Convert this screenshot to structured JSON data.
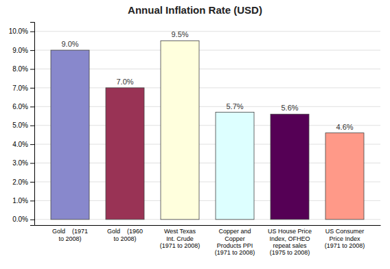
{
  "chart_data": {
    "type": "bar",
    "title": "Annual Inflation Rate (USD)",
    "categories": [
      "Gold    (1971\nto 2008)",
      "Gold    (1960\nto 2008)",
      "West Texas\nInt. Crude\n(1971 to 2008)",
      "Copper and\nCopper\nProducts PPI\n(1971 to 2008)",
      "US House Price\nIndex, OFHEO\nrepeat sales\n(1975 to 2008)",
      "US Consumer\nPrice Index\n(1971 to 2008)"
    ],
    "values": [
      9.0,
      7.0,
      9.5,
      5.7,
      5.6,
      4.6
    ],
    "value_labels": [
      "9.0%",
      "7.0%",
      "9.5%",
      "5.7%",
      "5.6%",
      "4.6%"
    ],
    "colors": [
      "#8888CC",
      "#993355",
      "#FFFFDD",
      "#DDFFFF",
      "#550055",
      "#FF9988"
    ],
    "ylim": [
      -0.3,
      10.5
    ],
    "yticks": [
      {
        "value": 0.0,
        "label": "0.0%"
      },
      {
        "value": 1.0,
        "label": "1.0%"
      },
      {
        "value": 2.0,
        "label": "2.0%"
      },
      {
        "value": 3.0,
        "label": "3.0%"
      },
      {
        "value": 4.0,
        "label": "4.0%"
      },
      {
        "value": 5.0,
        "label": "5.0%"
      },
      {
        "value": 6.0,
        "label": "6.0%"
      },
      {
        "value": 7.0,
        "label": "7.0%"
      },
      {
        "value": 8.0,
        "label": "8.0%"
      },
      {
        "value": 9.0,
        "label": "9.0%"
      },
      {
        "value": 10.0,
        "label": "10.0%"
      }
    ],
    "grid": true,
    "data_labels": true
  }
}
